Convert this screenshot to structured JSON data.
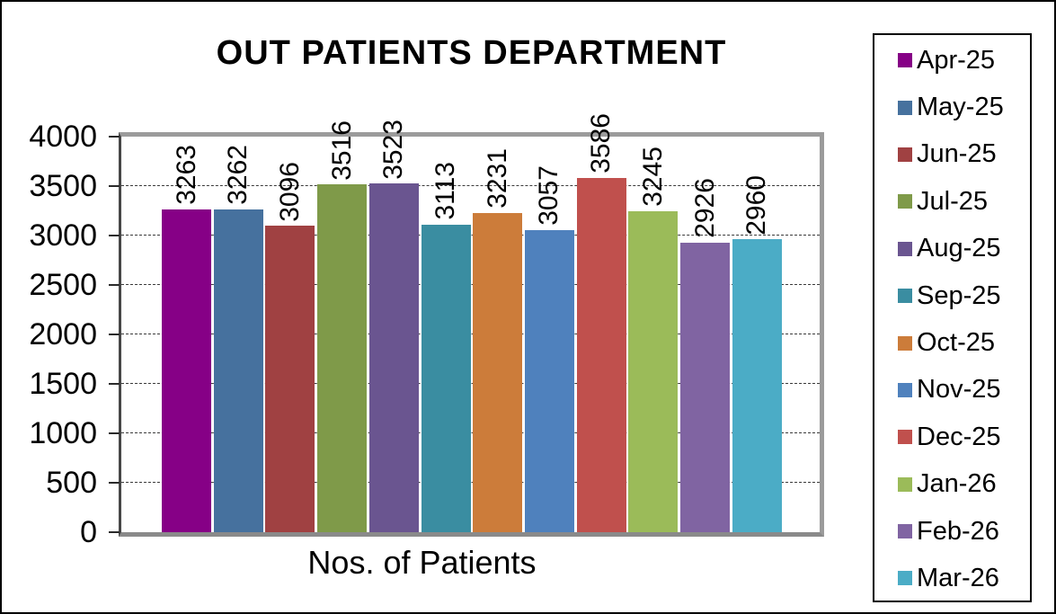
{
  "chart_data": {
    "type": "bar",
    "title": "OUT PATIENTS DEPARTMENT",
    "xlabel": "Nos. of Patients",
    "ylabel": "",
    "ylim": [
      0,
      4000
    ],
    "yticks": [
      0,
      500,
      1000,
      1500,
      2000,
      2500,
      3000,
      3500,
      4000
    ],
    "grid": "horizontal-dashed",
    "legend_position": "right",
    "categories": [
      "Apr-25",
      "May-25",
      "Jun-25",
      "Jul-25",
      "Aug-25",
      "Sep-25",
      "Oct-25",
      "Nov-25",
      "Dec-25",
      "Jan-26",
      "Feb-26",
      "Mar-26"
    ],
    "values": [
      3263,
      3262,
      3096,
      3516,
      3523,
      3113,
      3231,
      3057,
      3586,
      3245,
      2926,
      2960
    ],
    "series": [
      {
        "name": "Apr-25",
        "value": 3263,
        "color": "#860086"
      },
      {
        "name": "May-25",
        "value": 3262,
        "color": "#46719E"
      },
      {
        "name": "Jun-25",
        "value": 3096,
        "color": "#A04142"
      },
      {
        "name": "Jul-25",
        "value": 3516,
        "color": "#7F9A49"
      },
      {
        "name": "Aug-25",
        "value": 3523,
        "color": "#6A5590"
      },
      {
        "name": "Sep-25",
        "value": 3113,
        "color": "#3A8DA1"
      },
      {
        "name": "Oct-25",
        "value": 3231,
        "color": "#CC7C3A"
      },
      {
        "name": "Nov-25",
        "value": 3057,
        "color": "#4F81BD"
      },
      {
        "name": "Dec-25",
        "value": 3586,
        "color": "#C0504D"
      },
      {
        "name": "Jan-26",
        "value": 3245,
        "color": "#9BBB59"
      },
      {
        "name": "Feb-26",
        "value": 2926,
        "color": "#8064A2"
      },
      {
        "name": "Mar-26",
        "value": 2960,
        "color": "#4BACC6"
      }
    ]
  },
  "colors": {
    "plot_border": "#9b9b9b",
    "axis_line": "#474747",
    "gridline": "#3a3a3a",
    "text": "#000000",
    "background": "#ffffff"
  }
}
